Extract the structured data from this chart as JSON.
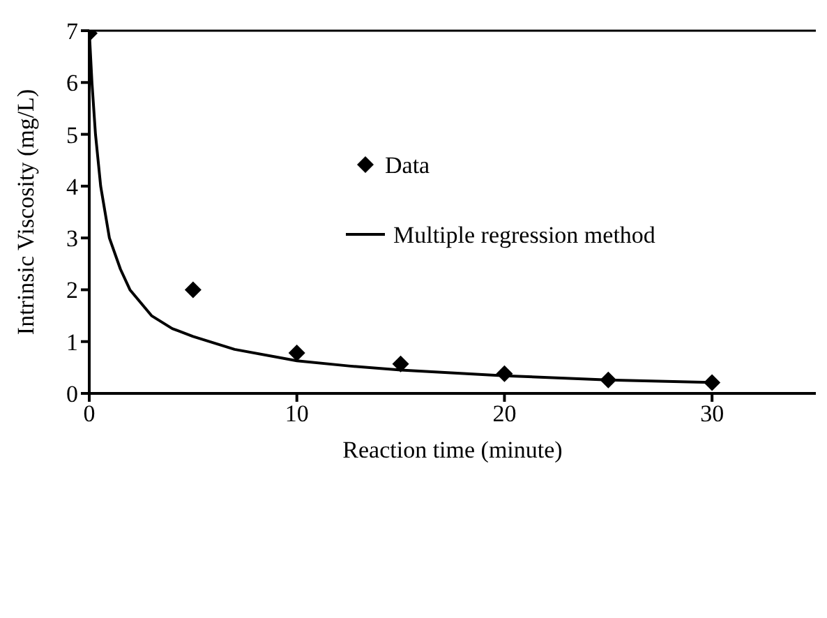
{
  "chart_data": {
    "type": "scatter",
    "xlabel": "Reaction time (minute)",
    "ylabel": "Intrinsic Viscosity (mg/L)",
    "xlim": [
      0,
      35
    ],
    "xticks": [
      0,
      10,
      20,
      30
    ],
    "ylim": [
      0,
      7
    ],
    "yticks": [
      0,
      1,
      2,
      3,
      4,
      5,
      6,
      7
    ],
    "legend": "top",
    "series": [
      {
        "name": "Data",
        "marker": "diamond",
        "color": "#000000",
        "x": [
          0,
          5,
          10,
          15,
          20,
          25,
          30
        ],
        "values": [
          6.95,
          2.0,
          0.78,
          0.57,
          0.38,
          0.26,
          0.21
        ]
      },
      {
        "name": "Multiple regression method",
        "type": "line",
        "marker": "none",
        "line_style": "solid",
        "color": "#000000",
        "x": [
          0,
          0.13,
          0.3,
          0.55,
          0.97,
          1.5,
          1.96,
          3,
          4,
          5,
          7,
          10,
          12.5,
          15,
          20,
          25,
          30
        ],
        "values": [
          7,
          6,
          5,
          4,
          3,
          2.4,
          2,
          1.5,
          1.25,
          1.1,
          0.85,
          0.63,
          0.53,
          0.45,
          0.34,
          0.26,
          0.21
        ]
      }
    ]
  }
}
